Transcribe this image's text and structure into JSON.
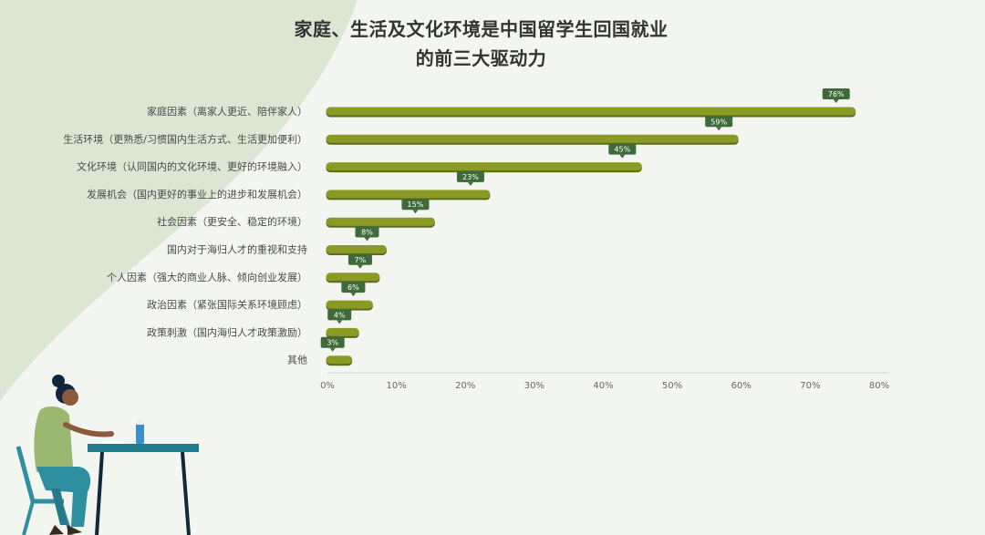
{
  "chart_data": {
    "type": "bar",
    "orientation": "horizontal",
    "title_lines": [
      "家庭、生活及文化环境是中国留学生回国就业",
      "的前三大驱动力"
    ],
    "categories": [
      "家庭因素（离家人更近、陪伴家人）",
      "生活环境（更熟悉/习惯国内生活方式、生活更加便利）",
      "文化环境（认同国内的文化环境、更好的环境融入）",
      "发展机会（国内更好的事业上的进步和发展机会）",
      "社会因素（更安全、稳定的环境）",
      "国内对于海归人才的重视和支持",
      "个人因素（强大的商业人脉、倾向创业发展）",
      "政治因素（紧张国际关系环境顾虑）",
      "政策刺激（国内海归人才政策激励）",
      "其他"
    ],
    "values": [
      76,
      59,
      45,
      23,
      15,
      8,
      7,
      6,
      4,
      3
    ],
    "data_labels": [
      "76%",
      "59%",
      "45%",
      "23%",
      "15%",
      "8%",
      "7%",
      "6%",
      "4%",
      "3%"
    ],
    "x_ticks": [
      "0%",
      "10%",
      "20%",
      "30%",
      "40%",
      "50%",
      "60%",
      "70%",
      "80%"
    ],
    "xlim": [
      0,
      80
    ],
    "grid": false,
    "colors": {
      "bar": "#8a9a25",
      "bar_shadow": "#5b6b1c",
      "label_bubble": "#3f6b3a",
      "axis": "#cfd4c6",
      "background": "#f3f6f0",
      "bg_blob": "#dbe7d3"
    }
  }
}
